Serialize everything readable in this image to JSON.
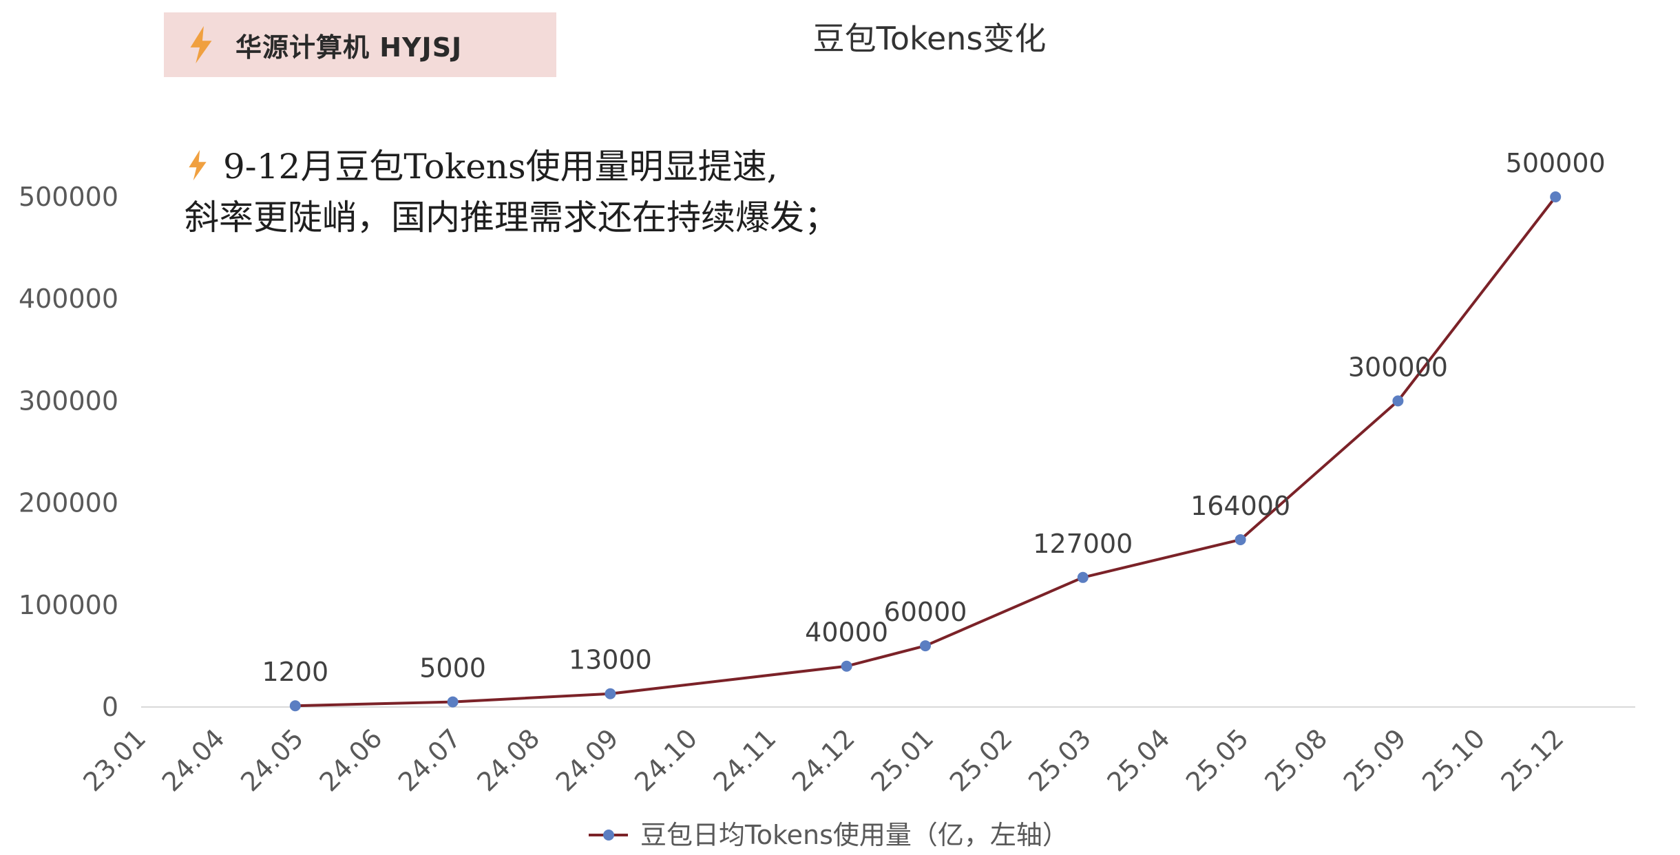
{
  "brand": {
    "label": "华源计算机 HYJSJ",
    "icon": "lightning-bolt-icon",
    "background_color": "#f3dbd9",
    "icon_color": "#f0a040"
  },
  "annotation": {
    "icon": "lightning-bolt-icon",
    "line1": "9-12月豆包Tokens使用量明显提速,",
    "line2": "斜率更陡峭，国内推理需求还在持续爆发；"
  },
  "chart_data": {
    "type": "line",
    "title": "豆包Tokens变化",
    "categories": [
      "23.01",
      "24.04",
      "24.05",
      "24.06",
      "24.07",
      "24.08",
      "24.09",
      "24.10",
      "24.11",
      "24.12",
      "25.01",
      "25.02",
      "25.03",
      "25.04",
      "25.05",
      "25.08",
      "25.09",
      "25.10",
      "25.12"
    ],
    "series": [
      {
        "name": "豆包日均Tokens使用量（亿，左轴）",
        "color": "#7b2228",
        "marker_color": "#5b7ec2",
        "points": [
          {
            "x": "24.05",
            "y": 1200,
            "label": "1200"
          },
          {
            "x": "24.07",
            "y": 5000,
            "label": "5000"
          },
          {
            "x": "24.09",
            "y": 13000,
            "label": "13000"
          },
          {
            "x": "24.12",
            "y": 40000,
            "label": "40000"
          },
          {
            "x": "25.01",
            "y": 60000,
            "label": "60000"
          },
          {
            "x": "25.03",
            "y": 127000,
            "label": "127000"
          },
          {
            "x": "25.05",
            "y": 164000,
            "label": "164000"
          },
          {
            "x": "25.09",
            "y": 300000,
            "label": "300000"
          },
          {
            "x": "25.12",
            "y": 500000,
            "label": "500000"
          }
        ]
      }
    ],
    "yticks": [
      "0",
      "100000",
      "200000",
      "300000",
      "400000",
      "500000"
    ],
    "ylim": [
      0,
      500000
    ],
    "grid": false,
    "legend_position": "bottom"
  }
}
